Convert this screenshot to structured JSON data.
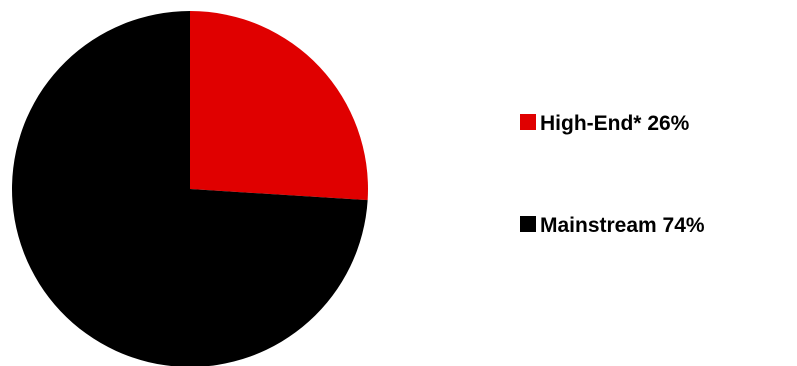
{
  "chart_data": {
    "type": "pie",
    "title": "",
    "slices": [
      {
        "label": "High-End*",
        "value": 26,
        "display": "High-End* 26%",
        "color": "#e00000"
      },
      {
        "label": "Mainstream",
        "value": 74,
        "display": "Mainstream 74%",
        "color": "#000000"
      }
    ],
    "legend_position": "right",
    "start_angle": "top, clockwise"
  }
}
